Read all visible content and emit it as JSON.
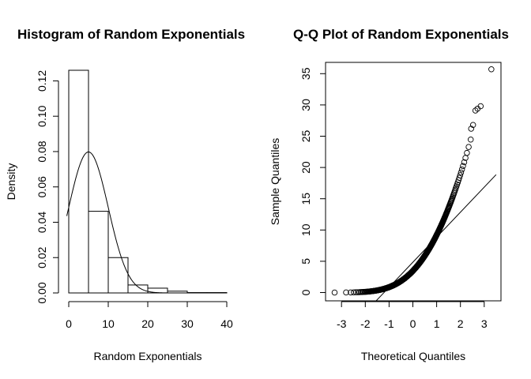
{
  "chart_data": [
    {
      "type": "bar",
      "title": "Histogram of Random Exponentials",
      "xlabel": "Random Exponentials",
      "ylabel": "Density",
      "xlim": [
        0,
        40
      ],
      "ylim": [
        0,
        0.126
      ],
      "xticks": [
        "0",
        "10",
        "20",
        "30",
        "40"
      ],
      "yticks": [
        "0.00",
        "0.02",
        "0.04",
        "0.06",
        "0.08",
        "0.10",
        "0.12"
      ],
      "bins": [
        {
          "from": 0,
          "to": 5,
          "density": 0.126
        },
        {
          "from": 5,
          "to": 10,
          "density": 0.0462
        },
        {
          "from": 10,
          "to": 15,
          "density": 0.02
        },
        {
          "from": 15,
          "to": 20,
          "density": 0.0045
        },
        {
          "from": 20,
          "to": 25,
          "density": 0.0027
        },
        {
          "from": 25,
          "to": 30,
          "density": 0.001
        },
        {
          "from": 30,
          "to": 35,
          "density": 0.0002
        },
        {
          "from": 35,
          "to": 40,
          "density": 0.0002
        }
      ],
      "overlay_curve": {
        "type": "line",
        "description": "normal density curve",
        "mean": 5,
        "sd": 5,
        "x_range": [
          -0.5,
          40
        ]
      },
      "grid": false,
      "legend": "none"
    },
    {
      "type": "scatter",
      "title": "Q-Q Plot of Random Exponentials",
      "xlabel": "Theoretical Quantiles",
      "ylabel": "Sample Quantiles",
      "xlim": [
        -3.5,
        3.5
      ],
      "ylim": [
        -1.4,
        37
      ],
      "xticks": [
        "-3",
        "-2",
        "-1",
        "0",
        "1",
        "2",
        "3"
      ],
      "yticks": [
        "0",
        "5",
        "10",
        "15",
        "20",
        "25",
        "30",
        "35"
      ],
      "reference_line": {
        "intercept": 4.85,
        "slope": 4.0
      },
      "sample_quantiles": {
        "n": 1000,
        "rate": 0.2
      },
      "outliers": [
        {
          "x": 2.45,
          "y": 26.2
        },
        {
          "x": 2.53,
          "y": 26.8
        },
        {
          "x": 2.63,
          "y": 29.1
        },
        {
          "x": 2.72,
          "y": 29.4
        },
        {
          "x": 2.85,
          "y": 29.8
        },
        {
          "x": 3.3,
          "y": 35.7
        }
      ],
      "grid": false,
      "legend": "none"
    }
  ]
}
